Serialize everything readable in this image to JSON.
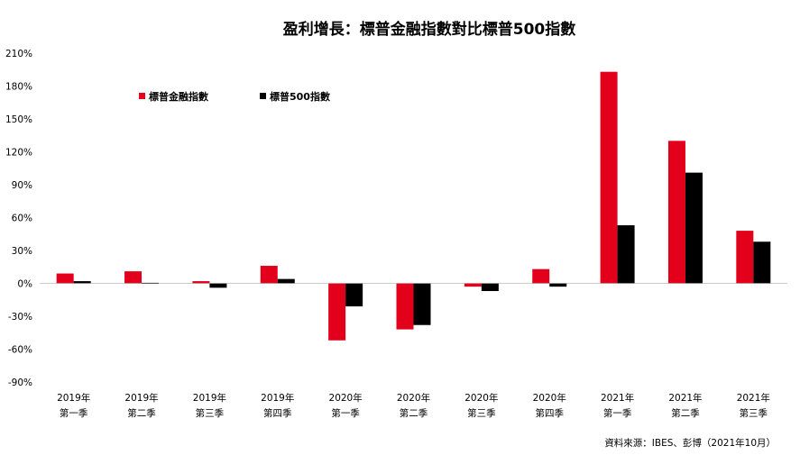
{
  "chart_data": {
    "type": "bar",
    "title": "盈利增長：標普金融指數對比標普500指數",
    "source": "資料來源：IBES、彭博（2021年10月）",
    "ylim": [
      -90,
      210
    ],
    "yticks": [
      -90,
      -60,
      -30,
      0,
      30,
      60,
      90,
      120,
      150,
      180,
      210
    ],
    "ytick_labels": [
      "-90%",
      "-60%",
      "-30%",
      "0%",
      "30%",
      "60%",
      "90%",
      "120%",
      "150%",
      "180%",
      "210%"
    ],
    "categories": [
      [
        "2019年",
        "第一季"
      ],
      [
        "2019年",
        "第二季"
      ],
      [
        "2019年",
        "第三季"
      ],
      [
        "2019年",
        "第四季"
      ],
      [
        "2020年",
        "第一季"
      ],
      [
        "2020年",
        "第二季"
      ],
      [
        "2020年",
        "第三季"
      ],
      [
        "2020年",
        "第四季"
      ],
      [
        "2021年",
        "第一季"
      ],
      [
        "2021年",
        "第二季"
      ],
      [
        "2021年",
        "第三季"
      ]
    ],
    "series": [
      {
        "name": "標普金融指數",
        "color": "#e3001b",
        "values": [
          9,
          11,
          2,
          16,
          -52,
          -42,
          -3,
          13,
          193,
          130,
          48
        ]
      },
      {
        "name": "標普500指數",
        "color": "#000000",
        "values": [
          2,
          0.5,
          -4,
          4,
          -21,
          -38,
          -7,
          -3,
          53,
          101,
          38
        ]
      }
    ],
    "grid": false,
    "legend": "top-left"
  }
}
